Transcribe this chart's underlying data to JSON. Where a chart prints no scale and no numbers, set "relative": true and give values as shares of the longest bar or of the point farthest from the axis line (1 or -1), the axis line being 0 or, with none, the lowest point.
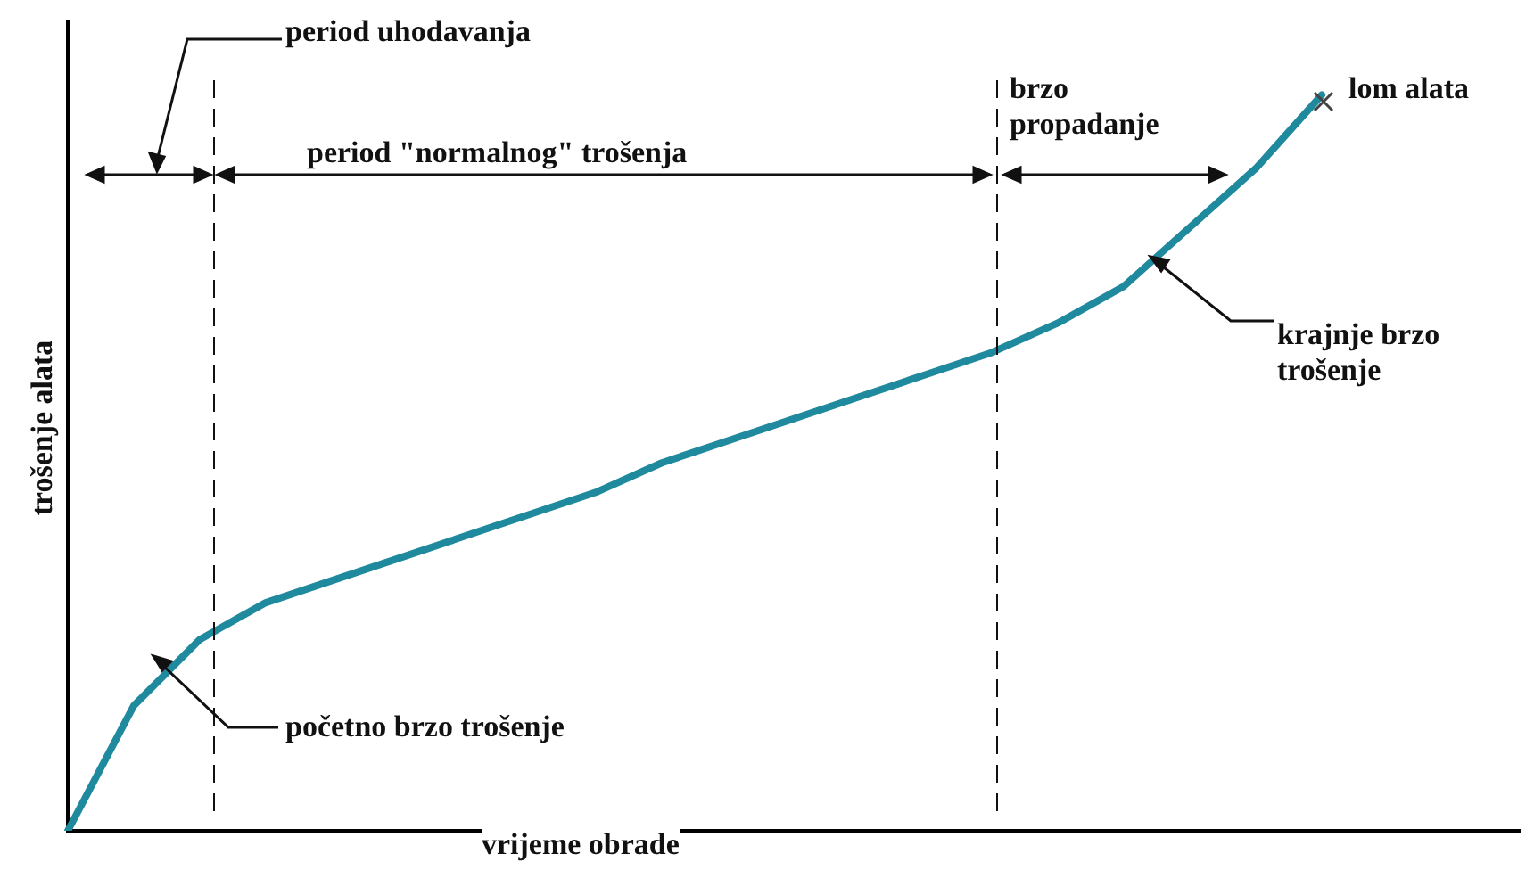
{
  "chart_data": {
    "type": "line",
    "relative": true,
    "xlabel": "vrijeme obrade",
    "ylabel": "trošenje alata",
    "categories": [
      null,
      null,
      null,
      null,
      null,
      null,
      null,
      null,
      null,
      null,
      null,
      null,
      null,
      null,
      null,
      null,
      null,
      null,
      null,
      null,
      null,
      null,
      null
    ],
    "series": [
      {
        "color": "#1f8a9e",
        "values": [
          0,
          0.17,
          0.26,
          0.31,
          0.34,
          0.37,
          0.4,
          0.43,
          0.46,
          0.5,
          0.53,
          0.56,
          0.59,
          0.62,
          0.65,
          0.69,
          0.74,
          0.82,
          0.9,
          1,
          null,
          null,
          null
        ]
      }
    ],
    "annotations": [
      "period uhodavanja",
      "period \"normalnog\" trošenja",
      "brzo propadanje",
      "lom alata",
      "krajnje brzo trošenje",
      "početno brzo trošenje"
    ],
    "marker": "none",
    "line_style": "solid",
    "grid": false,
    "legend": false
  }
}
